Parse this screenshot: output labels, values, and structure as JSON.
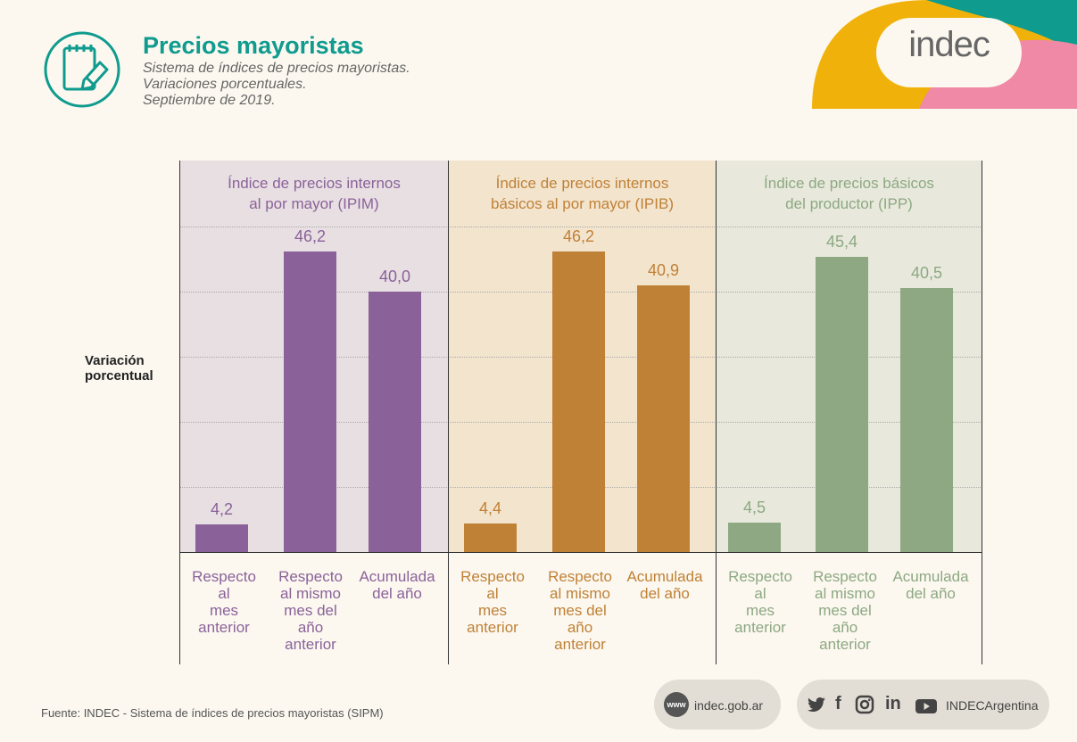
{
  "header": {
    "title": "Precios mayoristas",
    "subtitle_lines": [
      "Sistema de índices de precios mayoristas.",
      "Variaciones porcentuales.",
      "Septiembre de 2019."
    ],
    "logo": "indec"
  },
  "colors": {
    "ipim": "#8a6299",
    "ipib": "#bf8136",
    "ipp": "#8da882",
    "ipim_bg": "#e8dfe2",
    "ipib_bg": "#f3e4ce",
    "ipp_bg": "#e8e9dc",
    "teal": "#0f9b8e"
  },
  "chart_data": {
    "type": "bar",
    "ylabel": "Variación porcentual",
    "ylim": [
      0,
      60
    ],
    "groups": [
      {
        "name": "Índice de precios internos al por mayor (IPIM)",
        "title_lines": [
          "Índice de precios internos",
          "al por mayor (IPIM)"
        ],
        "categories": [
          [
            "Respecto",
            "al",
            "mes",
            "anterior"
          ],
          [
            "Respecto",
            "al mismo",
            "mes del",
            "año",
            "anterior"
          ],
          [
            "Acumulada",
            "del año"
          ]
        ],
        "values": [
          4.2,
          46.2,
          40.0
        ],
        "labels": [
          "4,2",
          "46,2",
          "40,0"
        ]
      },
      {
        "name": "Índice de precios internos básicos al por mayor (IPIB)",
        "title_lines": [
          "Índice de precios internos",
          "básicos al por mayor (IPIB)"
        ],
        "categories": [
          [
            "Respecto",
            "al",
            "mes",
            "anterior"
          ],
          [
            "Respecto",
            "al mismo",
            "mes del",
            "año",
            "anterior"
          ],
          [
            "Acumulada",
            "del año"
          ]
        ],
        "values": [
          4.4,
          46.2,
          40.9
        ],
        "labels": [
          "4,4",
          "46,2",
          "40,9"
        ]
      },
      {
        "name": "Índice de precios básicos del productor (IPP)",
        "title_lines": [
          "Índice de precios básicos",
          "del productor (IPP)"
        ],
        "categories": [
          [
            "Respecto",
            "al",
            "mes",
            "anterior"
          ],
          [
            "Respecto",
            "al mismo",
            "mes del",
            "año",
            "anterior"
          ],
          [
            "Acumulada",
            "del año"
          ]
        ],
        "values": [
          4.5,
          45.4,
          40.5
        ],
        "labels": [
          "4,5",
          "45,4",
          "40,5"
        ]
      }
    ]
  },
  "footer": {
    "source": "Fuente: INDEC - Sistema de índices de precios mayoristas (SIPM)",
    "www_badge": "www",
    "website": "indec.gob.ar",
    "social_handle": "INDECArgentina",
    "social_icons": [
      "twitter-icon",
      "facebook-icon",
      "instagram-icon",
      "linkedin-icon",
      "youtube-icon"
    ]
  }
}
